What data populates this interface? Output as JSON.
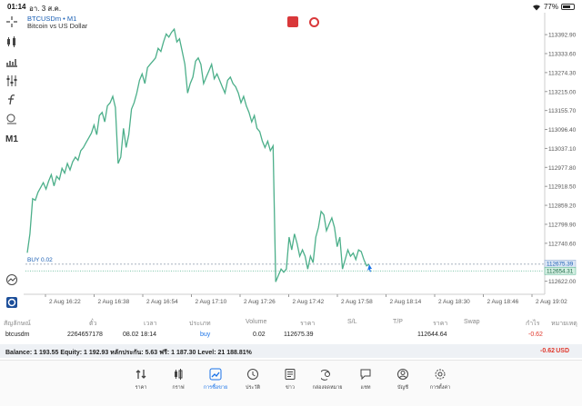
{
  "status": {
    "time": "01:14",
    "date": "อา. 3 ส.ค.",
    "battery": "77%",
    "battery_level": 0.77
  },
  "chart": {
    "symbol": "BTCUSDm • M1",
    "description": "Bitcoin vs US Dollar",
    "buy_label": "BUY 0.02",
    "timeframe": "M1",
    "line_color": "#4caf8a"
  },
  "chart_data": {
    "type": "line",
    "ylim": [
      112581.13,
      113432.99
    ],
    "price_ticks": [
      "113452.99",
      "113392.90",
      "113333.60",
      "113274.30",
      "113215.00",
      "113155.70",
      "113096.40",
      "113037.10",
      "112977.80",
      "112918.50",
      "112859.20",
      "112799.90",
      "112740.60",
      "112681.30",
      "112622.00"
    ],
    "price_tick_values": [
      113452.99,
      113392.9,
      113333.6,
      113274.3,
      113215.0,
      113155.7,
      113096.4,
      113037.1,
      112977.8,
      112918.5,
      112859.2,
      112799.9,
      112740.6,
      112681.3,
      112622.0
    ],
    "time_ticks": [
      "2 Aug 16:22",
      "2 Aug 16:38",
      "2 Aug 16:54",
      "2 Aug 17:10",
      "2 Aug 17:26",
      "2 Aug 17:42",
      "2 Aug 17:58",
      "2 Aug 18:14",
      "2 Aug 18:30",
      "2 Aug 18:46",
      "2 Aug 19:02"
    ],
    "price_labels": {
      "buy": "112675.39",
      "bid": "112654.31"
    },
    "buy_price": 112675.39,
    "bid_price": 112654.31,
    "series_y": [
      112711,
      112770,
      112880,
      112875,
      112900,
      112915,
      112930,
      112910,
      112935,
      112955,
      112920,
      112950,
      112940,
      112975,
      112960,
      112990,
      112970,
      112995,
      113010,
      113000,
      113030,
      113040,
      113055,
      113070,
      113085,
      113110,
      113080,
      113140,
      113150,
      113120,
      113170,
      113180,
      113200,
      113165,
      112990,
      113010,
      113100,
      113040,
      113080,
      113160,
      113180,
      113210,
      113250,
      113270,
      113240,
      113290,
      113300,
      113310,
      113320,
      113350,
      113340,
      113370,
      113395,
      113385,
      113400,
      113410,
      113370,
      113380,
      113340,
      113300,
      113210,
      113240,
      113260,
      113310,
      113320,
      113300,
      113240,
      113260,
      113280,
      113300,
      113255,
      113270,
      113250,
      113230,
      113210,
      113250,
      113260,
      113240,
      113230,
      113210,
      113180,
      113200,
      113170,
      113150,
      113120,
      113140,
      113100,
      113090,
      113060,
      113040,
      113060,
      113030,
      113045,
      112620,
      112640,
      112660,
      112650,
      112660,
      112760,
      112720,
      112770,
      112740,
      112700,
      112720,
      112700,
      112660,
      112700,
      112680,
      112760,
      112790,
      112840,
      112830,
      112780,
      112800,
      112820,
      112790,
      112730,
      112760,
      112660,
      112690,
      112720,
      112700,
      112710,
      112690,
      112720,
      112715,
      112690,
      112670,
      112675
    ]
  },
  "table": {
    "headers": [
      "สัญลักษณ์",
      "ตั๋ว",
      "เวลา",
      "ประเภท",
      "Volume",
      "ราคา",
      "S/L",
      "T/P",
      "ราคา",
      "Swap",
      "กำไร",
      "หมายเหตุ"
    ],
    "row": {
      "symbol": "btcusdm",
      "ticket": "2264657178",
      "time": "08.02 18:14",
      "type": "buy",
      "volume": "0.02",
      "price": "112675.39",
      "current_price": "112644.64",
      "profit": "-0.62"
    },
    "balance_text": "Balance: 1 193.55 Equity: 1 192.93 หลักประกัน: 5.63 ฟรี: 1 187.30 Level: 21 188.81%",
    "balance_pl": "-0.62",
    "currency": "USD"
  },
  "nav": [
    {
      "label": "ราคา",
      "icon": "quotes-icon"
    },
    {
      "label": "กราฟ",
      "icon": "candles-icon"
    },
    {
      "label": "การซื้อขาย",
      "icon": "trade-icon"
    },
    {
      "label": "ประวัติ",
      "icon": "history-icon"
    },
    {
      "label": "ข่าว",
      "icon": "news-icon"
    },
    {
      "label": "กล่องจดหมาย",
      "icon": "mailbox-icon"
    },
    {
      "label": "แชท",
      "icon": "chat-icon"
    },
    {
      "label": "บัญชี",
      "icon": "account-icon"
    },
    {
      "label": "การตั้งค่า",
      "icon": "settings-icon"
    }
  ],
  "nav_active": 2
}
